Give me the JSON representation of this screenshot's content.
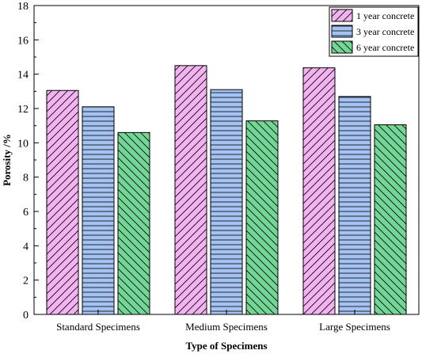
{
  "chart_data": {
    "type": "bar",
    "title": "",
    "xlabel": "Type of Specimens",
    "ylabel": "Porosity /%",
    "categories": [
      "Standard Specimens",
      "Medium Specimens",
      "Large Specimens"
    ],
    "series": [
      {
        "name": "1 year concrete",
        "values": [
          13.05,
          14.5,
          14.37
        ],
        "color": "#f3b3f1",
        "pattern": "diagonal-up"
      },
      {
        "name": "3 year concrete",
        "values": [
          12.1,
          13.1,
          12.7
        ],
        "color": "#a5c3f2",
        "pattern": "horizontal"
      },
      {
        "name": "6 year concrete",
        "values": [
          10.6,
          11.28,
          11.05
        ],
        "color": "#72d696",
        "pattern": "diagonal-down"
      }
    ],
    "ylim": [
      0,
      18
    ],
    "yticks": [
      0,
      2,
      4,
      6,
      8,
      10,
      12,
      14,
      16,
      18
    ],
    "grid": false,
    "legend_position": "top-right"
  }
}
